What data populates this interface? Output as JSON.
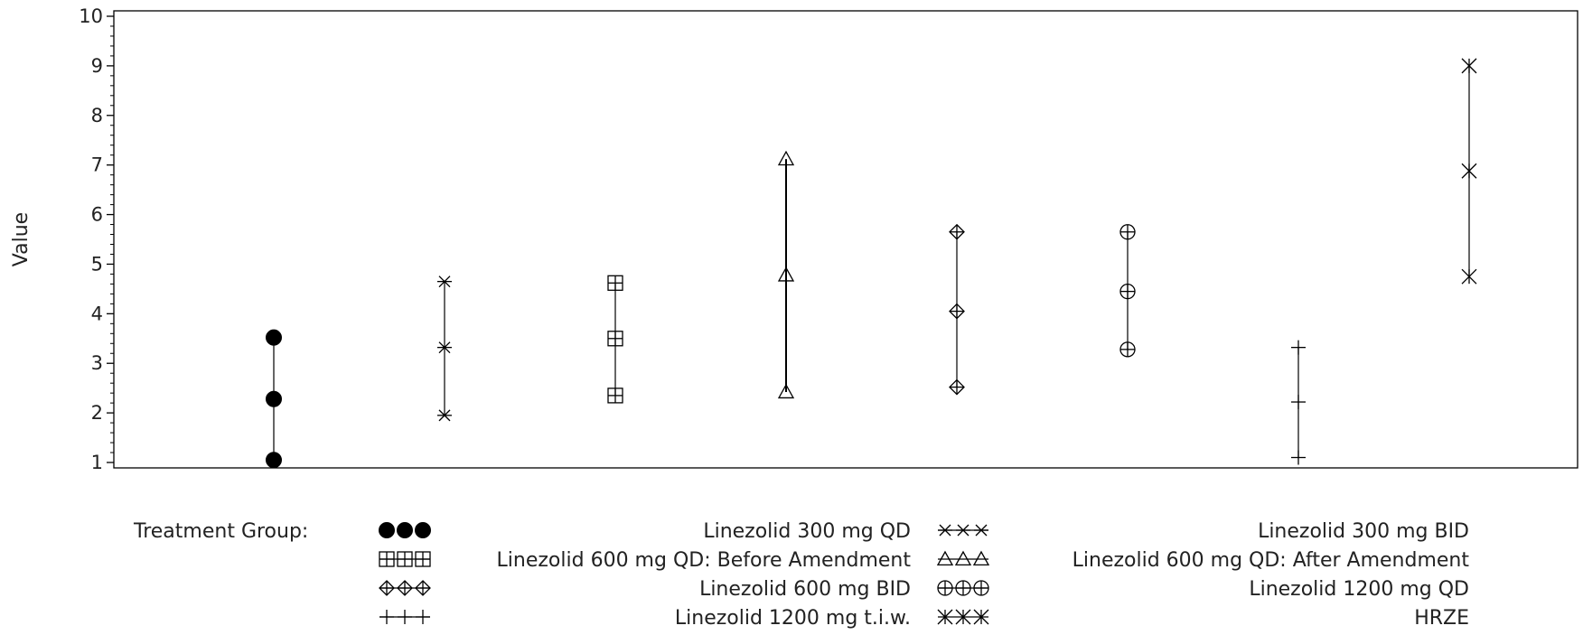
{
  "chart_data": {
    "type": "scatter",
    "ylabel": "Value",
    "xlabel": "",
    "ylim": [
      1,
      10
    ],
    "yticks": [
      "1",
      "2",
      "3",
      "4",
      "5",
      "6",
      "7",
      "8",
      "9",
      "10"
    ],
    "grid": false,
    "legend_placement": "bottom",
    "legend_title": "Treatment Group:",
    "series": [
      {
        "name": "Linezolid 300 mg QD",
        "marker": "filled-circle",
        "values": [
          1.05,
          2.28,
          3.52
        ]
      },
      {
        "name": "Linezolid 300 mg BID",
        "marker": "star",
        "values": [
          1.95,
          3.32,
          4.65
        ]
      },
      {
        "name": "Linezolid 600 mg QD: Before Amendment",
        "marker": "square-plus",
        "values": [
          2.35,
          3.5,
          4.62
        ]
      },
      {
        "name": "Linezolid 600 mg QD: After Amendment",
        "marker": "triangle",
        "values": [
          2.42,
          4.78,
          7.12
        ]
      },
      {
        "name": "Linezolid 600 mg BID",
        "marker": "diamond-plus",
        "values": [
          2.52,
          4.05,
          5.65
        ]
      },
      {
        "name": "Linezolid 1200 mg QD",
        "marker": "circle-plus",
        "values": [
          3.28,
          4.45,
          5.65
        ]
      },
      {
        "name": "Linezolid 1200 mg t.i.w.",
        "marker": "plus",
        "values": [
          1.1,
          2.22,
          3.32
        ]
      },
      {
        "name": "HRZE",
        "marker": "x-star",
        "values": [
          4.75,
          6.88,
          9.0
        ]
      }
    ]
  },
  "colors": {
    "ink": "#000000",
    "text": "#222222",
    "background": "#ffffff"
  }
}
